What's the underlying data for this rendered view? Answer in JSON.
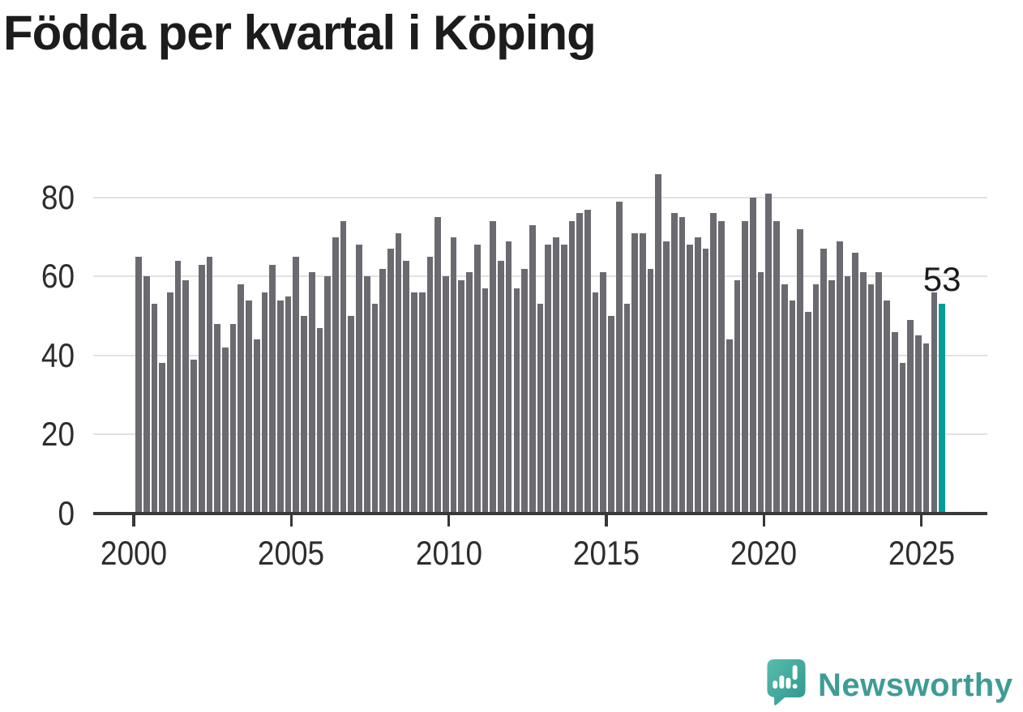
{
  "title": "Födda per kvartal i Köping",
  "chart_data": {
    "type": "bar",
    "title": "Födda per kvartal i Köping",
    "x_start": "2000 Q1",
    "x_end": "2025 Q3",
    "frequency": "quarterly",
    "x_tick_labels": [
      "2000",
      "2005",
      "2010",
      "2015",
      "2020",
      "2025"
    ],
    "y_ticks": [
      0,
      20,
      40,
      60,
      80
    ],
    "ylim": [
      0,
      88
    ],
    "grid": "horizontal",
    "legend": "none",
    "bar_color": "#6b6a70",
    "values": [
      65,
      60,
      53,
      38,
      56,
      64,
      59,
      39,
      63,
      65,
      48,
      42,
      48,
      58,
      54,
      44,
      56,
      63,
      54,
      55,
      65,
      50,
      61,
      47,
      60,
      70,
      74,
      50,
      68,
      60,
      53,
      62,
      67,
      71,
      64,
      56,
      56,
      65,
      75,
      60,
      70,
      59,
      61,
      68,
      57,
      74,
      64,
      69,
      57,
      62,
      73,
      53,
      68,
      70,
      68,
      74,
      76,
      77,
      56,
      61,
      50,
      79,
      53,
      71,
      71,
      62,
      86,
      69,
      76,
      75,
      68,
      70,
      67,
      76,
      74,
      44,
      59,
      74,
      80,
      61,
      81,
      74,
      58,
      54,
      72,
      51,
      58,
      67,
      59,
      69,
      60,
      66,
      61,
      58,
      61,
      54,
      46,
      38,
      49,
      45,
      43,
      56,
      53
    ],
    "highlight": {
      "index": 102,
      "quarter": "2025 Q3",
      "value": 53,
      "label": "53",
      "color": "#089c96"
    }
  },
  "branding": {
    "wordmark": "Newsworthy",
    "brand_color": "#3e9c94",
    "icon": "newsworthy-speech-bubble-chart-icon"
  }
}
